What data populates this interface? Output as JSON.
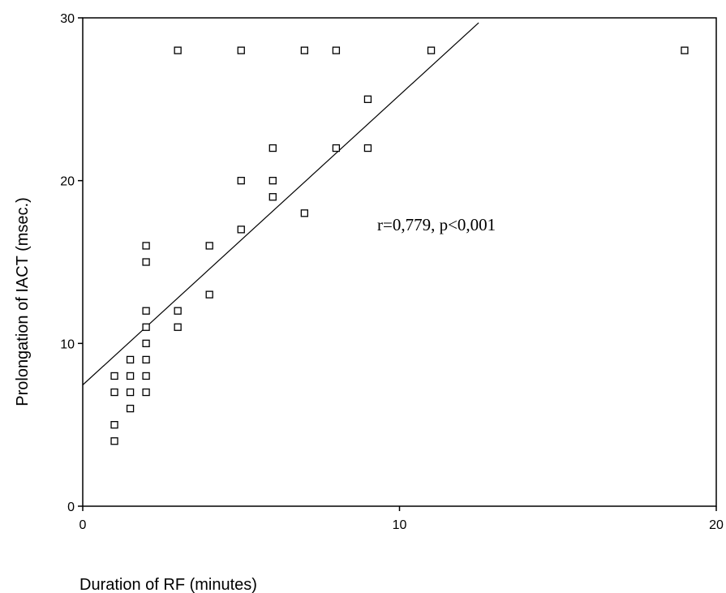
{
  "chart_data": {
    "type": "scatter",
    "title": "",
    "xlabel": "Duration of RF (minutes)",
    "ylabel": "Prolongation of IACT (msec.)",
    "xlim": [
      0,
      20
    ],
    "ylim": [
      0,
      30
    ],
    "x_ticks": [
      0,
      10,
      20
    ],
    "y_ticks": [
      0,
      10,
      20,
      30
    ],
    "x_tick_labels": [
      "0",
      "10",
      "20"
    ],
    "y_tick_labels": [
      "0",
      "10",
      "20",
      "30"
    ],
    "grid": false,
    "marker": "open-square",
    "points": [
      {
        "x": 3,
        "y": 28
      },
      {
        "x": 5,
        "y": 28
      },
      {
        "x": 7,
        "y": 28
      },
      {
        "x": 8,
        "y": 28
      },
      {
        "x": 11,
        "y": 28
      },
      {
        "x": 19,
        "y": 28
      },
      {
        "x": 9,
        "y": 25
      },
      {
        "x": 6,
        "y": 22
      },
      {
        "x": 8,
        "y": 22
      },
      {
        "x": 9,
        "y": 22
      },
      {
        "x": 5,
        "y": 20
      },
      {
        "x": 6,
        "y": 20
      },
      {
        "x": 6,
        "y": 19
      },
      {
        "x": 7,
        "y": 18
      },
      {
        "x": 5,
        "y": 17
      },
      {
        "x": 4,
        "y": 16
      },
      {
        "x": 2,
        "y": 16
      },
      {
        "x": 2,
        "y": 15
      },
      {
        "x": 4,
        "y": 13
      },
      {
        "x": 3,
        "y": 12
      },
      {
        "x": 2,
        "y": 12
      },
      {
        "x": 3,
        "y": 11
      },
      {
        "x": 2,
        "y": 11
      },
      {
        "x": 2,
        "y": 10
      },
      {
        "x": 1.5,
        "y": 9
      },
      {
        "x": 2,
        "y": 9
      },
      {
        "x": 1,
        "y": 8
      },
      {
        "x": 1.5,
        "y": 8
      },
      {
        "x": 2,
        "y": 8
      },
      {
        "x": 1,
        "y": 7
      },
      {
        "x": 1.5,
        "y": 7
      },
      {
        "x": 2,
        "y": 7
      },
      {
        "x": 1.5,
        "y": 6
      },
      {
        "x": 1,
        "y": 5
      },
      {
        "x": 1,
        "y": 4
      }
    ],
    "regression_line": {
      "intercept": 7.45,
      "slope": 1.78,
      "x_start": 0,
      "x_end": 12.5
    },
    "annotation": "r=0,779, p<0,001"
  }
}
